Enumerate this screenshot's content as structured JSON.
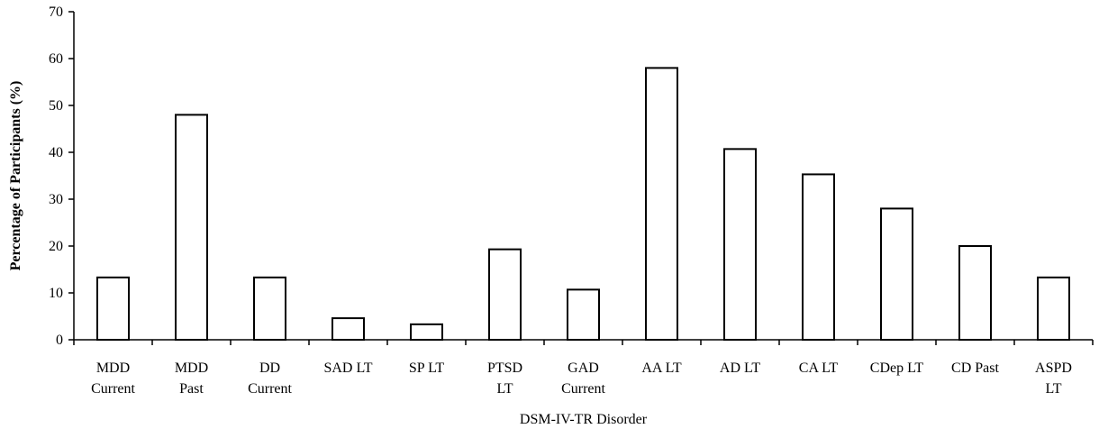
{
  "chart_data": {
    "type": "bar",
    "xlabel": "DSM-IV-TR Disorder",
    "ylabel": "Percentage of Participants (%)",
    "ylim": [
      0,
      70
    ],
    "yticks": [
      0,
      10,
      20,
      30,
      40,
      50,
      60,
      70
    ],
    "grid": false,
    "categories": [
      [
        "MDD",
        "Current"
      ],
      [
        "MDD",
        "Past"
      ],
      [
        "DD",
        "Current"
      ],
      [
        "SAD LT"
      ],
      [
        "SP LT"
      ],
      [
        "PTSD",
        "LT"
      ],
      [
        "GAD",
        "Current"
      ],
      [
        "AA LT"
      ],
      [
        "AD LT"
      ],
      [
        "CA LT"
      ],
      [
        "CDep LT"
      ],
      [
        "CD Past"
      ],
      [
        "ASPD",
        "LT"
      ]
    ],
    "values": [
      13.3,
      48,
      13.3,
      4.6,
      3.3,
      19.3,
      10.7,
      58,
      40.7,
      35.3,
      28,
      20,
      13.3
    ],
    "bar_fill": "#ffffff",
    "bar_stroke": "#000000"
  }
}
